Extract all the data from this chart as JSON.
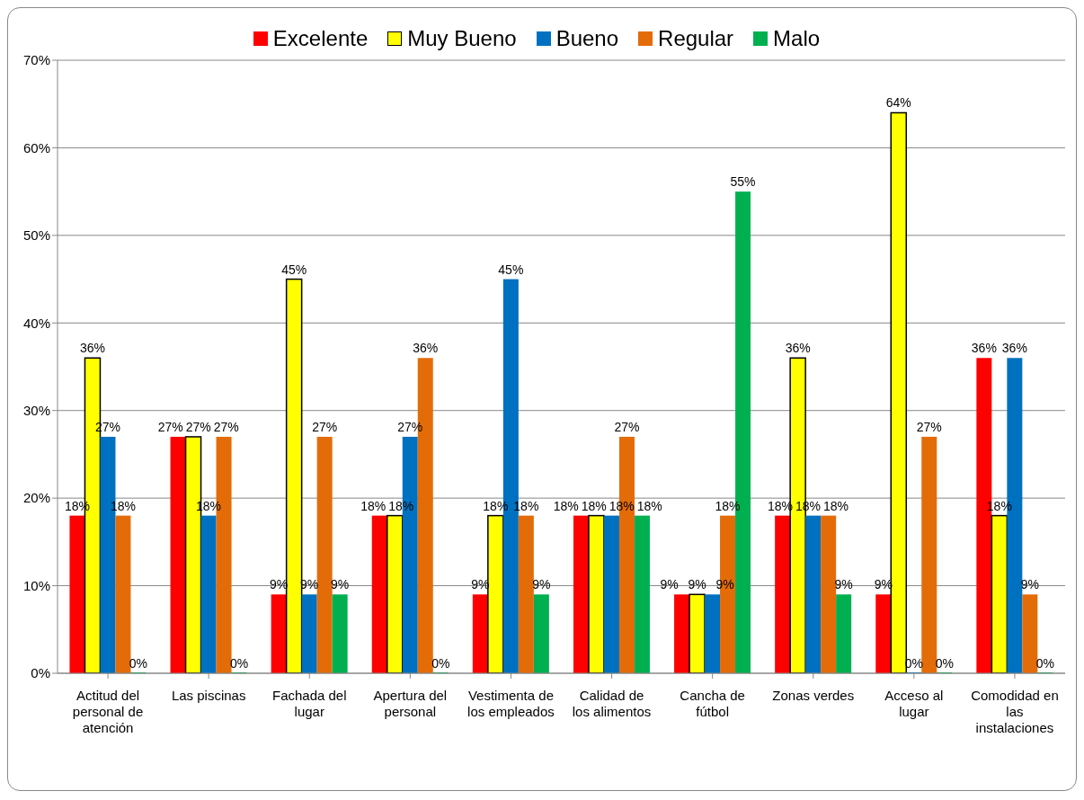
{
  "chart_data": {
    "type": "bar",
    "categories": [
      "Actitud del personal de atención",
      "Las piscinas",
      "Fachada del lugar",
      "Apertura del personal",
      "Vestimenta de los empleados",
      "Calidad de los alimentos",
      "Cancha de fútbol",
      "Zonas verdes",
      "Acceso al lugar",
      "Comodidad en las instalaciones"
    ],
    "series": [
      {
        "name": "Excelente",
        "color": "#ff0000",
        "values": [
          18,
          27,
          9,
          18,
          9,
          18,
          9,
          18,
          9,
          36
        ],
        "value_labels": [
          "18%",
          "27%",
          "9%",
          "18%",
          "9%",
          "18%",
          "9%",
          "18%",
          "9%",
          "36%"
        ]
      },
      {
        "name": "Muy Bueno",
        "color": "#ffff00",
        "values": [
          36,
          27,
          45,
          18,
          18,
          18,
          9,
          36,
          64,
          18
        ],
        "value_labels": [
          "36%",
          "27%",
          "45%",
          "18%",
          "18%",
          "18%",
          "9%",
          "36%",
          "64%",
          "18%"
        ]
      },
      {
        "name": "Bueno",
        "color": "#0070c0",
        "values": [
          27,
          18,
          9,
          27,
          45,
          18,
          9,
          18,
          0,
          36
        ],
        "value_labels": [
          "27%",
          "18%",
          "9%",
          "27%",
          "45%",
          "18%",
          "9%",
          "18%",
          "0%",
          "36%"
        ]
      },
      {
        "name": "Regular",
        "color": "#e36c09",
        "values": [
          18,
          27,
          27,
          36,
          18,
          27,
          18,
          18,
          27,
          9
        ],
        "value_labels": [
          "18%",
          "27%",
          "27%",
          "36%",
          "18%",
          "27%",
          "18%",
          "18%",
          "27%",
          "9%"
        ]
      },
      {
        "name": "Malo",
        "color": "#00b050",
        "values": [
          0,
          0,
          9,
          0,
          9,
          18,
          55,
          9,
          0,
          0
        ],
        "value_labels": [
          "0%",
          "0%",
          "9%",
          "0%",
          "9%",
          "18%",
          "55%",
          "9%",
          "0%",
          "0%"
        ]
      }
    ],
    "ylim": [
      0,
      70
    ],
    "yticks": [
      {
        "value": 0,
        "label": "0%"
      },
      {
        "value": 10,
        "label": "10%"
      },
      {
        "value": 20,
        "label": "20%"
      },
      {
        "value": 30,
        "label": "30%"
      },
      {
        "value": 40,
        "label": "40%"
      },
      {
        "value": 50,
        "label": "50%"
      },
      {
        "value": 60,
        "label": "60%"
      },
      {
        "value": 70,
        "label": "70%"
      }
    ],
    "grid": "y",
    "legend": "top"
  }
}
